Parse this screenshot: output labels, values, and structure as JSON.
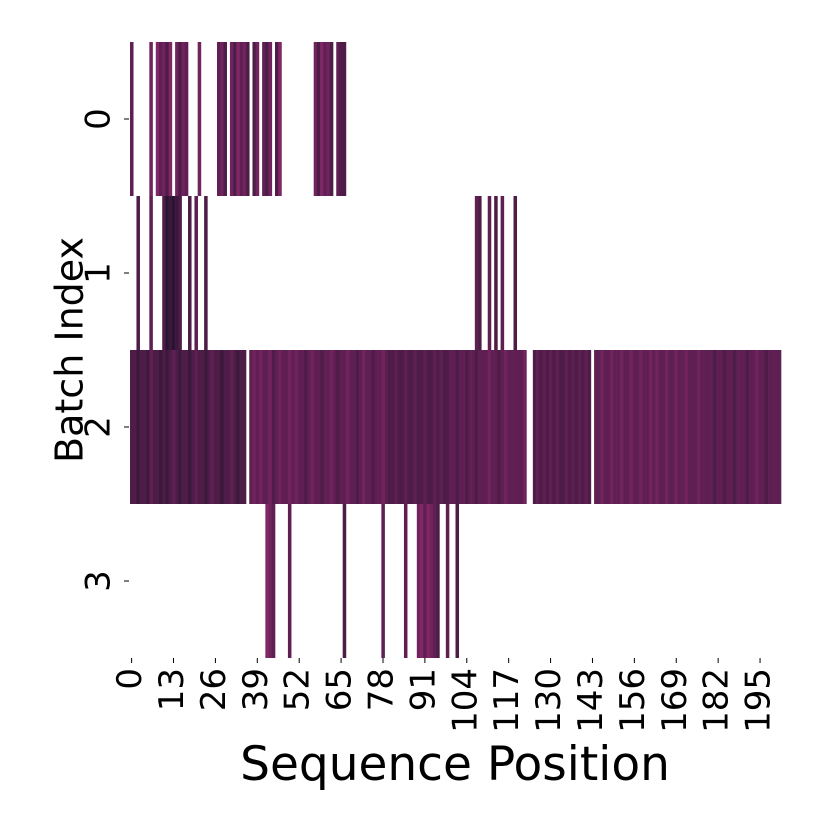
{
  "chart_data": {
    "type": "heatmap",
    "xlabel": "Sequence Position",
    "ylabel": "Batch Index",
    "xticks": [
      0,
      13,
      26,
      39,
      52,
      65,
      78,
      91,
      104,
      117,
      130,
      143,
      156,
      169,
      182,
      195
    ],
    "yticks": [
      0,
      1,
      2,
      3
    ],
    "colormap": [
      "#1a1029",
      "#922b70"
    ],
    "zlim": [
      0,
      0.7
    ],
    "z": [
      [
        0.4,
        null,
        null,
        null,
        null,
        null,
        0.5,
        null,
        0.6,
        0.4,
        0.5,
        0.3,
        0.6,
        null,
        0.5,
        0.3,
        0.5,
        0.4,
        null,
        null,
        null,
        0.5,
        null,
        null,
        null,
        null,
        null,
        0.4,
        0.5,
        0.3,
        null,
        0.5,
        0.3,
        0.6,
        0.4,
        0.5,
        0.3,
        null,
        0.3,
        0.5,
        null,
        0.4,
        0.3,
        0.5,
        null,
        0.3,
        0.6,
        null,
        null,
        null,
        null,
        null,
        null,
        null,
        null,
        null,
        null,
        0.5,
        0.3,
        0.6,
        0.4,
        0.5,
        0.3,
        null,
        0.4,
        0.3,
        0.3,
        null,
        null,
        null,
        null,
        null,
        null,
        null,
        null,
        null,
        null,
        null,
        null,
        null,
        null,
        null,
        null,
        null,
        null,
        null,
        null,
        null,
        null,
        null,
        null,
        null,
        null,
        null,
        null,
        null,
        null,
        null,
        null,
        null,
        null,
        null,
        null,
        null,
        null,
        null,
        null,
        null,
        null,
        null,
        null,
        null,
        null,
        null,
        null,
        null,
        null,
        null,
        null,
        null,
        null,
        null,
        null,
        null,
        null,
        null,
        null,
        null,
        null,
        null,
        null,
        null,
        null,
        null,
        null,
        null,
        null,
        null,
        null,
        null,
        null,
        null,
        null,
        null,
        null,
        null,
        null,
        null,
        null,
        null,
        null,
        null,
        null,
        null,
        null,
        null,
        null,
        null,
        null,
        null,
        null,
        null,
        null,
        null,
        null,
        null,
        null,
        null,
        null,
        null,
        null,
        null,
        null,
        null,
        null,
        null,
        null,
        null,
        null,
        null,
        null,
        null,
        null,
        null,
        null,
        null,
        null,
        null,
        null,
        null,
        null,
        null,
        null,
        null,
        null,
        null,
        null,
        null,
        null,
        null,
        null,
        null
      ],
      [
        null,
        null,
        0.3,
        null,
        null,
        null,
        0.4,
        null,
        null,
        null,
        0.3,
        0.1,
        0.2,
        0.1,
        0.2,
        0.3,
        null,
        null,
        0.3,
        null,
        0.4,
        null,
        null,
        0.3,
        null,
        null,
        null,
        null,
        null,
        null,
        null,
        null,
        null,
        null,
        null,
        null,
        null,
        null,
        null,
        null,
        null,
        null,
        null,
        null,
        null,
        null,
        null,
        null,
        null,
        null,
        null,
        null,
        null,
        null,
        null,
        null,
        null,
        null,
        null,
        null,
        null,
        null,
        null,
        null,
        null,
        null,
        null,
        null,
        null,
        null,
        null,
        null,
        null,
        null,
        null,
        null,
        null,
        null,
        null,
        null,
        null,
        null,
        null,
        null,
        null,
        null,
        null,
        null,
        null,
        null,
        null,
        null,
        null,
        null,
        null,
        null,
        null,
        null,
        null,
        null,
        null,
        null,
        null,
        null,
        null,
        null,
        null,
        0.4,
        0.3,
        null,
        null,
        0.4,
        null,
        0.3,
        null,
        0.4,
        null,
        null,
        null,
        0.3,
        null,
        null,
        null,
        null,
        null,
        null,
        null,
        null,
        null,
        null,
        null,
        null,
        null,
        null,
        null,
        null,
        null,
        null,
        null,
        null,
        null,
        null,
        null,
        null,
        null,
        null,
        null,
        null,
        null,
        null,
        null,
        null,
        null,
        null,
        null,
        null,
        null,
        null,
        null,
        null,
        null,
        null,
        null,
        null,
        null,
        null,
        null,
        null,
        null,
        null,
        null,
        null,
        null,
        null,
        null,
        null,
        null,
        null,
        null,
        null,
        null,
        null,
        null,
        null,
        null,
        null,
        null,
        null,
        null,
        null,
        null,
        null,
        null,
        null,
        null,
        null,
        null,
        null,
        null,
        null,
        null,
        null
      ],
      [
        0.3,
        0.3,
        0.2,
        0.3,
        0.3,
        0.2,
        0.4,
        0.3,
        0.3,
        0.2,
        0.3,
        0.2,
        0.3,
        0.4,
        0.3,
        0.2,
        0.3,
        0.3,
        0.2,
        0.3,
        0.4,
        0.3,
        0.3,
        0.2,
        0.3,
        0.4,
        0.3,
        0.3,
        0.2,
        0.3,
        0.3,
        0.4,
        0.3,
        0.2,
        0.3,
        0.3,
        null,
        0.4,
        0.5,
        0.4,
        0.5,
        0.4,
        0.4,
        0.5,
        0.3,
        0.4,
        0.5,
        0.4,
        0.4,
        0.5,
        0.4,
        0.5,
        0.4,
        0.4,
        0.3,
        0.4,
        0.5,
        0.4,
        0.4,
        0.3,
        0.4,
        0.4,
        0.5,
        0.4,
        0.3,
        0.4,
        0.4,
        0.5,
        0.4,
        0.4,
        0.3,
        0.4,
        0.5,
        0.4,
        0.4,
        0.3,
        0.4,
        0.4,
        0.5,
        0.4,
        0.3,
        0.3,
        0.4,
        0.3,
        0.3,
        0.4,
        0.3,
        0.3,
        0.4,
        0.3,
        0.3,
        0.4,
        0.3,
        0.3,
        0.4,
        0.3,
        0.4,
        0.3,
        0.3,
        0.4,
        0.4,
        0.3,
        0.4,
        0.4,
        0.3,
        0.4,
        0.4,
        0.3,
        0.4,
        0.4,
        0.4,
        0.5,
        0.4,
        0.4,
        0.3,
        0.4,
        0.5,
        0.4,
        0.4,
        0.4,
        0.4,
        0.4,
        0.5,
        null,
        null,
        0.3,
        0.4,
        0.3,
        0.4,
        0.3,
        0.4,
        0.3,
        0.4,
        0.3,
        0.3,
        0.4,
        0.3,
        0.4,
        0.3,
        0.4,
        0.3,
        0.4,
        0.3,
        null,
        0.4,
        0.4,
        0.5,
        0.4,
        0.4,
        0.5,
        0.4,
        0.4,
        0.5,
        0.4,
        0.4,
        0.5,
        0.4,
        0.4,
        0.5,
        0.4,
        0.4,
        0.5,
        0.4,
        0.5,
        0.4,
        0.4,
        0.5,
        0.4,
        0.4,
        0.5,
        0.4,
        0.4,
        0.5,
        0.4,
        0.4,
        0.4,
        0.5,
        0.4,
        0.4,
        0.4,
        0.4,
        0.3,
        0.4,
        0.4,
        0.3,
        0.4,
        0.4,
        0.3,
        0.4,
        0.4,
        0.4,
        0.3,
        0.4,
        0.4,
        0.5,
        0.4,
        0.4,
        0.3,
        0.4,
        0.4,
        0.4,
        0.4
      ],
      [
        null,
        null,
        null,
        null,
        null,
        null,
        null,
        null,
        null,
        null,
        null,
        null,
        null,
        null,
        null,
        null,
        null,
        null,
        null,
        null,
        null,
        null,
        null,
        null,
        null,
        null,
        null,
        null,
        null,
        null,
        null,
        null,
        null,
        null,
        null,
        null,
        null,
        null,
        null,
        null,
        null,
        null,
        0.6,
        0.5,
        0.4,
        null,
        null,
        null,
        null,
        0.4,
        null,
        null,
        null,
        null,
        null,
        null,
        null,
        null,
        null,
        null,
        null,
        null,
        null,
        null,
        null,
        null,
        0.3,
        null,
        null,
        null,
        null,
        null,
        null,
        null,
        null,
        null,
        null,
        null,
        0.4,
        null,
        null,
        null,
        null,
        null,
        null,
        0.4,
        null,
        null,
        null,
        0.5,
        0.6,
        0.4,
        0.6,
        0.5,
        0.4,
        0.3,
        null,
        null,
        0.4,
        null,
        null,
        0.3,
        null,
        null,
        null,
        null,
        null,
        null,
        null,
        null,
        null,
        null,
        null,
        null,
        null,
        null,
        null,
        null,
        null,
        null,
        null,
        null,
        null,
        null,
        null,
        null,
        null,
        null,
        null,
        null,
        null,
        null,
        null,
        null,
        null,
        null,
        null,
        null,
        null,
        null,
        null,
        null,
        null,
        null,
        null,
        null,
        null,
        null,
        null,
        null,
        null,
        null,
        null,
        null,
        null,
        null,
        null,
        null,
        null,
        null,
        null,
        null,
        null,
        null,
        null,
        null,
        null,
        null,
        null,
        null,
        null,
        null,
        null,
        null,
        null,
        null,
        null,
        null,
        null,
        null,
        null,
        null,
        null,
        null,
        null,
        null,
        null,
        null,
        null,
        null,
        null,
        null,
        null,
        null,
        null,
        null,
        null,
        null,
        null,
        null,
        null,
        null
      ]
    ]
  }
}
